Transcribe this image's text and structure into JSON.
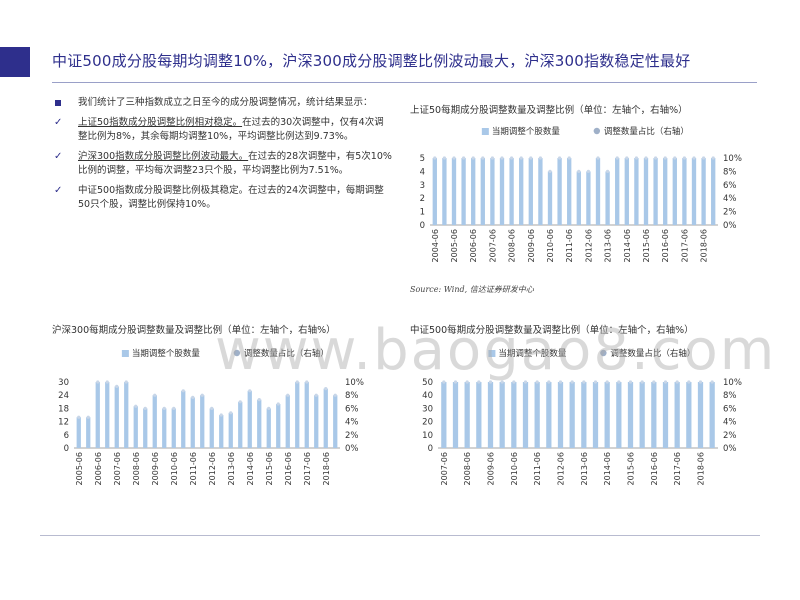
{
  "title": "中证500成分股每期均调整10%，沪深300成分股调整比例波动最大，沪深300指数稳定性最好",
  "bullets": [
    {
      "type": "square",
      "lead": "",
      "text": "我们统计了三种指数成立之日至今的成分股调整情况，统计结果显示："
    },
    {
      "type": "check",
      "lead": "上证50指数成分股调整比例相对稳定。",
      "text": "在过去的30次调整中，仅有4次调整比例为8%，其余每期均调整10%，平均调整比例达到9.73%。"
    },
    {
      "type": "check",
      "lead": "沪深300指数成分股调整比例波动最大。",
      "text": "在过去的28次调整中，有5次10%比例的调整，平均每次调整23只个股，平均调整比例为7.51%。"
    },
    {
      "type": "check",
      "lead": "",
      "text": "中证500指数成分股调整比例极其稳定。在过去的24次调整中，每期调整50只个股，调整比例保持10%。"
    }
  ],
  "source": "Source: Wind, 信达证券研发中心",
  "watermark": "www.baogao8.com",
  "colors": {
    "bar": "#a9c8e8",
    "accent": "#2e2f8c"
  },
  "chart_data": [
    {
      "id": "sz50",
      "type": "bar",
      "title": "上证50每期成分股调整数量及调整比例（单位：左轴个，右轴%）",
      "legend": [
        "当期调整个股数量",
        "调整数量占比（右轴）"
      ],
      "legend_position": "top",
      "categories": [
        "2004-06",
        "",
        "2005-06",
        "",
        "2006-06",
        "",
        "2007-06",
        "",
        "2008-06",
        "",
        "2009-06",
        "",
        "2010-06",
        "",
        "2011-06",
        "",
        "2012-06",
        "",
        "2013-06",
        "",
        "2014-06",
        "",
        "2015-06",
        "",
        "2016-06",
        "",
        "2017-06",
        "",
        "2018-06",
        ""
      ],
      "tick_labels": [
        "2004-06",
        "2005-06",
        "2006-06",
        "2007-06",
        "2008-06",
        "2009-06",
        "2010-06",
        "2011-06",
        "2012-06",
        "2013-06",
        "2014-06",
        "2015-06",
        "2016-06",
        "2017-06",
        "2018-06"
      ],
      "values": [
        5,
        5,
        5,
        5,
        5,
        5,
        5,
        5,
        5,
        5,
        5,
        5,
        4,
        5,
        5,
        4,
        4,
        5,
        4,
        5,
        5,
        5,
        5,
        5,
        5,
        5,
        5,
        5,
        5,
        5
      ],
      "ylim": [
        0,
        5
      ],
      "yticks": [
        "0",
        "1",
        "2",
        "3",
        "4",
        "5"
      ],
      "y2ticks": [
        "0%",
        "2%",
        "4%",
        "6%",
        "8%",
        "10%"
      ]
    },
    {
      "id": "hs300",
      "type": "bar",
      "title": "沪深300每期成分股调整数量及调整比例（单位：左轴个，右轴%）",
      "legend": [
        "当期调整个股数量",
        "调整数量占比（右轴）"
      ],
      "legend_position": "top",
      "categories": [
        "2005-06",
        "",
        "2006-06",
        "",
        "2007-06",
        "",
        "2008-06",
        "",
        "2009-06",
        "",
        "2010-06",
        "",
        "2011-06",
        "",
        "2012-06",
        "",
        "2013-06",
        "",
        "2014-06",
        "",
        "2015-06",
        "",
        "2016-06",
        "",
        "2017-06",
        "",
        "2018-06",
        ""
      ],
      "tick_labels": [
        "2005-06",
        "2006-06",
        "2007-06",
        "2008-06",
        "2009-06",
        "2010-06",
        "2011-06",
        "2012-06",
        "2013-06",
        "2014-06",
        "2015-06",
        "2016-06",
        "2017-06",
        "2018-06"
      ],
      "values": [
        14,
        14,
        30,
        30,
        28,
        30,
        19,
        18,
        24,
        18,
        18,
        26,
        23,
        24,
        18,
        15,
        16,
        21,
        26,
        22,
        18,
        20,
        24,
        30,
        30,
        24,
        27,
        24
      ],
      "ylim": [
        0,
        30
      ],
      "yticks": [
        "0",
        "6",
        "12",
        "18",
        "24",
        "30"
      ],
      "y2ticks": [
        "0%",
        "2%",
        "4%",
        "6%",
        "8%",
        "10%"
      ]
    },
    {
      "id": "zz500",
      "type": "bar",
      "title": "中证500每期成分股调整数量及调整比例（单位：左轴个，右轴%）",
      "legend": [
        "当期调整个股数量",
        "调整数量占比（右轴）"
      ],
      "legend_position": "top",
      "categories": [
        "2007-06",
        "",
        "2008-06",
        "",
        "2009-06",
        "",
        "2010-06",
        "",
        "2011-06",
        "",
        "2012-06",
        "",
        "2013-06",
        "",
        "2014-06",
        "",
        "2015-06",
        "",
        "2016-06",
        "",
        "2017-06",
        "",
        "2018-06",
        ""
      ],
      "tick_labels": [
        "2007-06",
        "2008-06",
        "2009-06",
        "2010-06",
        "2011-06",
        "2012-06",
        "2013-06",
        "2014-06",
        "2015-06",
        "2016-06",
        "2017-06",
        "2018-06"
      ],
      "values": [
        50,
        50,
        50,
        50,
        50,
        50,
        50,
        50,
        50,
        50,
        50,
        50,
        50,
        50,
        50,
        50,
        50,
        50,
        50,
        50,
        50,
        50,
        50,
        50
      ],
      "ylim": [
        0,
        50
      ],
      "yticks": [
        "0",
        "10",
        "20",
        "30",
        "40",
        "50"
      ],
      "y2ticks": [
        "0%",
        "2%",
        "4%",
        "6%",
        "8%",
        "10%"
      ]
    }
  ]
}
